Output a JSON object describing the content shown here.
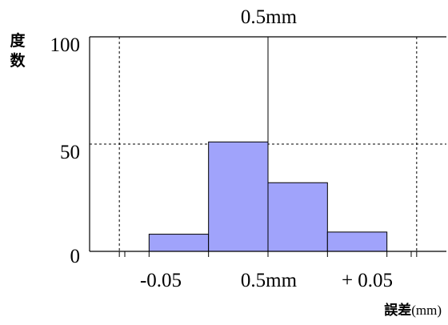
{
  "chart_data": {
    "type": "bar",
    "title": "0.5mm",
    "ylabel": "度\n数",
    "xlabel_unit": "誤差(mm)",
    "xlabel_unit_main": "誤差",
    "xlabel_unit_sub": "(mm)",
    "x_tick_labels": [
      "-0.05",
      "0.5mm",
      "+ 0.05"
    ],
    "y_tick_labels": [
      "100",
      "50",
      "0"
    ],
    "ylim": [
      0,
      100
    ],
    "bin_width": 0.02,
    "bins": [
      {
        "from": -0.04,
        "to": -0.02,
        "value": 8
      },
      {
        "from": -0.02,
        "to": 0.0,
        "value": 51
      },
      {
        "from": 0.0,
        "to": 0.02,
        "value": 32
      },
      {
        "from": 0.02,
        "to": 0.04,
        "value": 9
      }
    ],
    "bar_color": "#a0a3fb",
    "bar_outline": "#000000",
    "grid": "dashed"
  }
}
